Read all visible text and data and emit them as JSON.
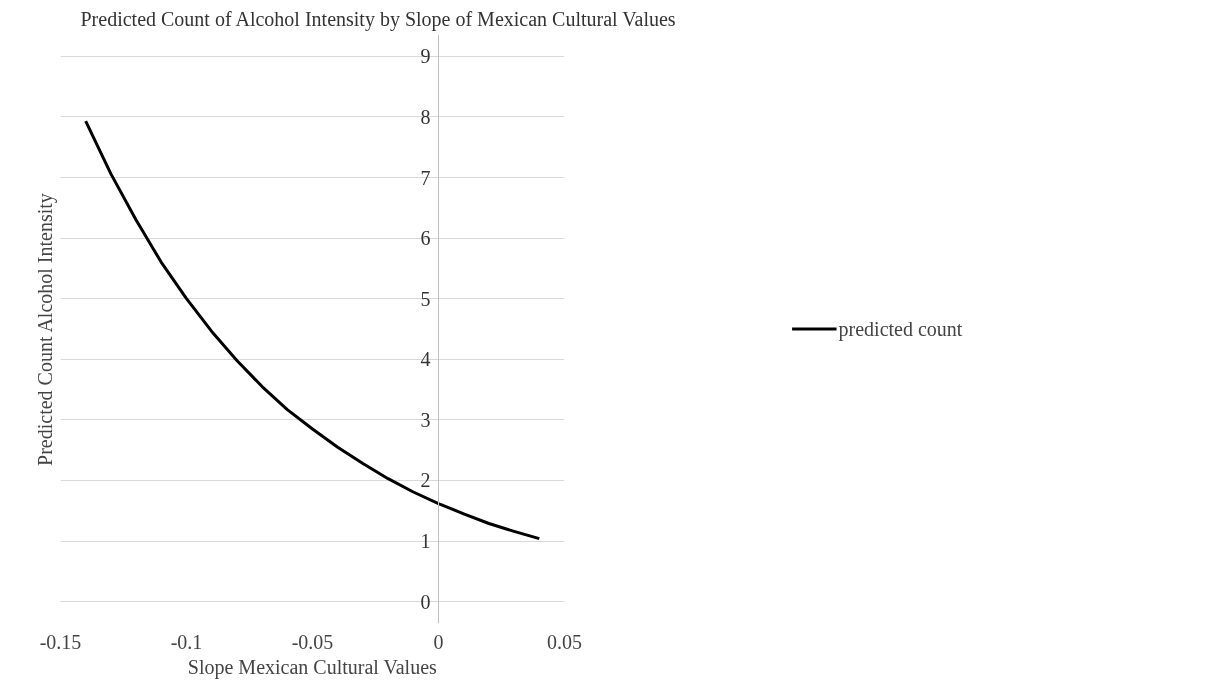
{
  "chart_data": {
    "type": "line",
    "title": "Predicted Count of Alcohol Intensity by Slope of Mexican Cultural Values",
    "xlabel": "Slope Mexican Cultural Values",
    "ylabel": "Predicted Count Alcohol Intensity",
    "series": [
      {
        "name": "predicted count",
        "color": "#000000",
        "x": [
          -0.14,
          -0.13,
          -0.12,
          -0.11,
          -0.1,
          -0.09,
          -0.08,
          -0.07,
          -0.06,
          -0.05,
          -0.04,
          -0.03,
          -0.02,
          -0.01,
          0,
          0.01,
          0.02,
          0.03,
          0.04
        ],
        "values": [
          7.93,
          7.06,
          6.3,
          5.6,
          5.0,
          4.46,
          3.98,
          3.55,
          3.17,
          2.85,
          2.55,
          2.28,
          2.03,
          1.81,
          1.62,
          1.45,
          1.29,
          1.16,
          1.04
        ]
      }
    ],
    "xlim": [
      -0.15,
      0.05
    ],
    "xticks": [
      -0.15,
      -0.1,
      -0.05,
      0,
      0.05
    ],
    "ylim": [
      0,
      9
    ],
    "yticks": [
      0,
      1,
      2,
      3,
      4,
      5,
      6,
      7,
      8,
      9
    ],
    "grid": "y",
    "legend": "right",
    "line_style": "solid",
    "marker": "none"
  }
}
